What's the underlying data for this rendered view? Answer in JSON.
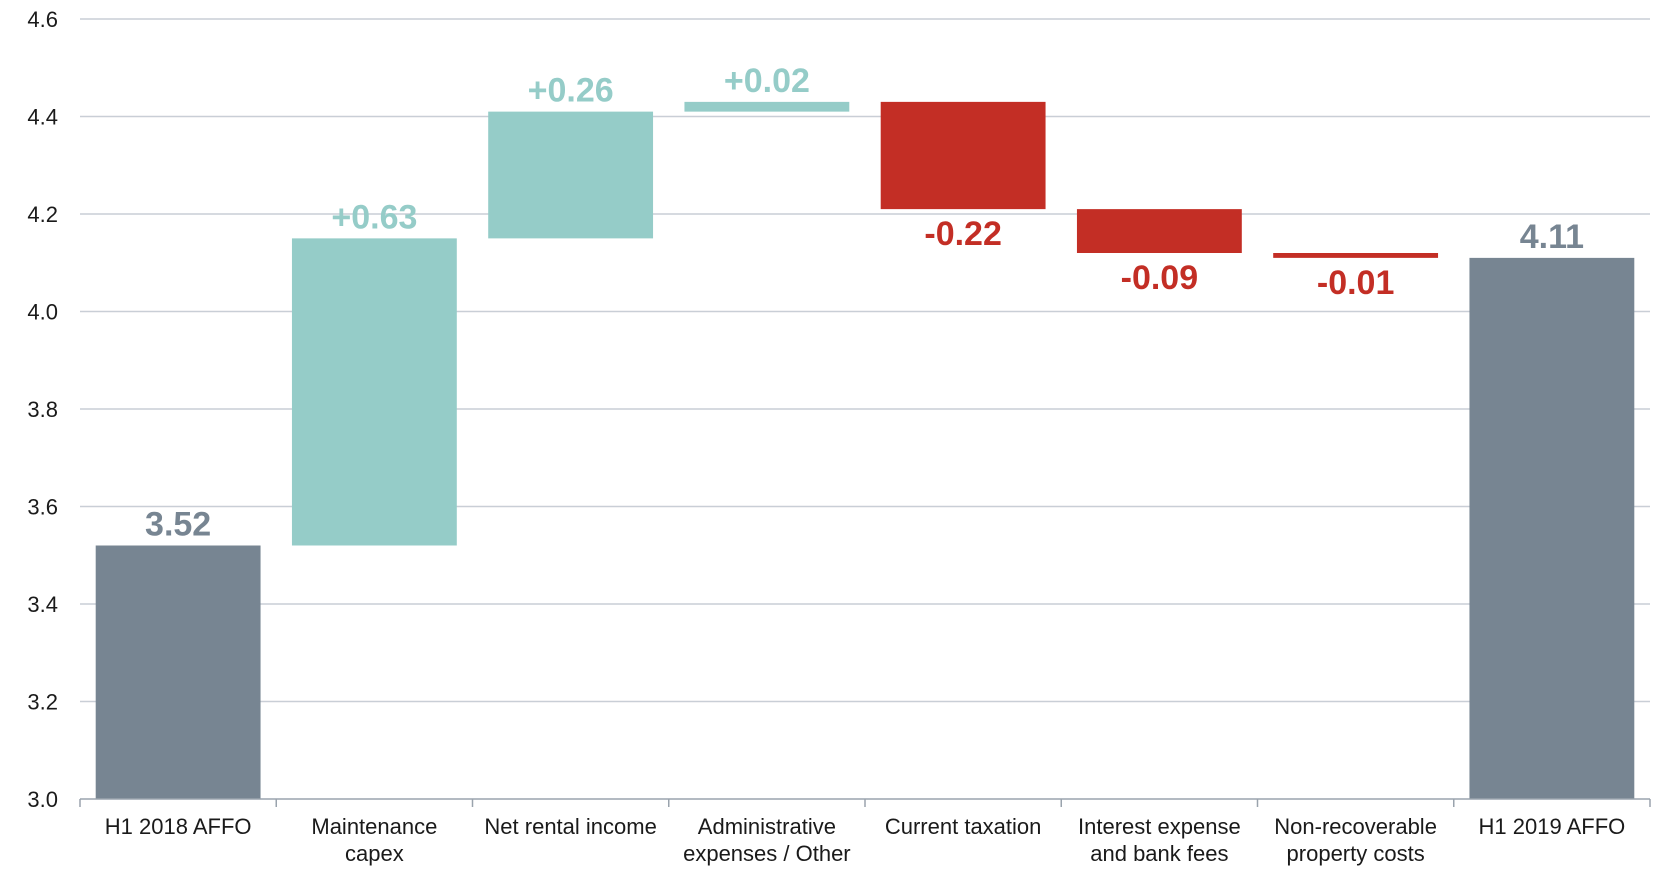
{
  "chart_data": {
    "type": "bar",
    "subtype": "waterfall",
    "title": "",
    "xlabel": "",
    "ylabel": "",
    "ylim": [
      3.0,
      4.6
    ],
    "yticks": [
      "3.0",
      "3.2",
      "3.4",
      "3.6",
      "3.8",
      "4.0",
      "4.2",
      "4.4",
      "4.6"
    ],
    "grid": true,
    "legend": "none",
    "categories": [
      [
        "H1 2018 AFFO"
      ],
      [
        "Maintenance",
        "capex"
      ],
      [
        "Net rental income"
      ],
      [
        "Administrative",
        "expenses / Other"
      ],
      [
        "Current taxation"
      ],
      [
        "Interest expense",
        "and bank fees"
      ],
      [
        "Non-recoverable",
        "property costs"
      ],
      [
        "H1 2019 AFFO"
      ]
    ],
    "bars": [
      {
        "kind": "total",
        "start": 3.0,
        "end": 3.52,
        "label": "3.52"
      },
      {
        "kind": "increase",
        "start": 3.52,
        "end": 4.15,
        "label": "+0.63"
      },
      {
        "kind": "increase",
        "start": 4.15,
        "end": 4.41,
        "label": "+0.26"
      },
      {
        "kind": "increase",
        "start": 4.41,
        "end": 4.43,
        "label": "+0.02"
      },
      {
        "kind": "decrease",
        "start": 4.43,
        "end": 4.21,
        "label": "-0.22"
      },
      {
        "kind": "decrease",
        "start": 4.21,
        "end": 4.12,
        "label": "-0.09"
      },
      {
        "kind": "decrease",
        "start": 4.12,
        "end": 4.11,
        "label": "-0.01"
      },
      {
        "kind": "total",
        "start": 3.0,
        "end": 4.11,
        "label": "4.11"
      }
    ],
    "colors": {
      "total": "#778592",
      "increase": "#95ccc8",
      "decrease": "#c32e25",
      "grid": "#c9ced6",
      "axis": "#9aa3ad"
    }
  }
}
